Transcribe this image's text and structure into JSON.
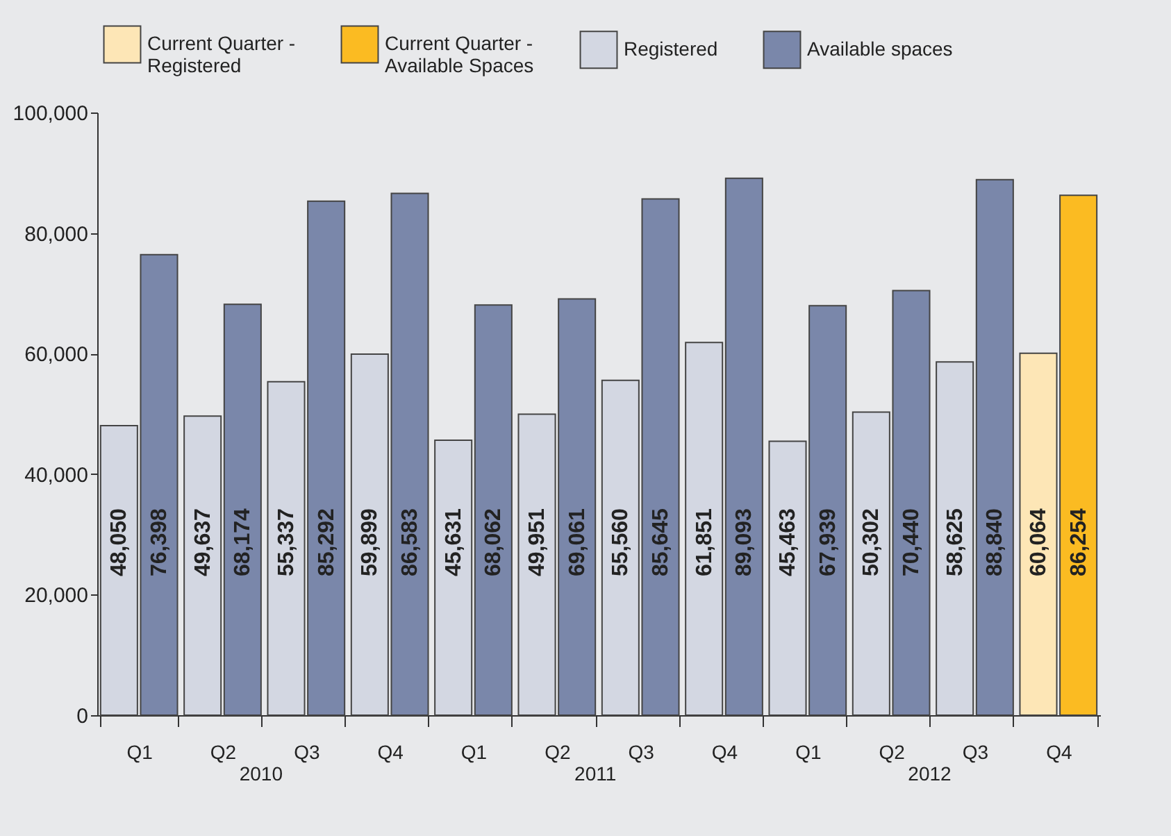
{
  "chart_data": {
    "type": "bar",
    "categories": [
      "Q1",
      "Q2",
      "Q3",
      "Q4",
      "Q1",
      "Q2",
      "Q3",
      "Q4",
      "Q1",
      "Q2",
      "Q3",
      "Q4"
    ],
    "annotations": [
      "2010",
      "2011",
      "2012"
    ],
    "ylim": [
      0,
      100000
    ],
    "yticks": [
      {
        "value": 0,
        "label": "0"
      },
      {
        "value": 20000,
        "label": "20,000"
      },
      {
        "value": 40000,
        "label": "40,000"
      },
      {
        "value": 60000,
        "label": "60,000"
      },
      {
        "value": 80000,
        "label": "80,000"
      },
      {
        "value": 100000,
        "label": "100,000"
      }
    ],
    "grid": false,
    "legend": "top",
    "series": [
      {
        "name": "Current Quarter - Registered",
        "color": "#fde6b6",
        "values": [
          null,
          null,
          null,
          null,
          null,
          null,
          null,
          null,
          null,
          null,
          null,
          60064
        ],
        "value_labels": [
          null,
          null,
          null,
          null,
          null,
          null,
          null,
          null,
          null,
          null,
          null,
          "60,064"
        ]
      },
      {
        "name": "Current Quarter - Available Spaces",
        "color": "#fbbb22",
        "values": [
          null,
          null,
          null,
          null,
          null,
          null,
          null,
          null,
          null,
          null,
          null,
          86254
        ],
        "value_labels": [
          null,
          null,
          null,
          null,
          null,
          null,
          null,
          null,
          null,
          null,
          null,
          "86,254"
        ]
      },
      {
        "name": "Registered",
        "color": "#d3d7e2",
        "values": [
          48050,
          49637,
          55337,
          59899,
          45631,
          49951,
          55560,
          61851,
          45463,
          50302,
          58625,
          null
        ],
        "value_labels": [
          "48,050",
          "49,637",
          "55,337",
          "59,899",
          "45,631",
          "49,951",
          "55,560",
          "61,851",
          "45,463",
          "50,302",
          "58,625",
          null
        ]
      },
      {
        "name": "Available spaces",
        "color": "#7a87aa",
        "values": [
          76398,
          68174,
          85292,
          86583,
          68062,
          69061,
          85645,
          89093,
          67939,
          70440,
          88840,
          null
        ],
        "value_labels": [
          "76,398",
          "68,174",
          "85,292",
          "86,583",
          "68,062",
          "69,061",
          "85,645",
          "89,093",
          "67,939",
          "70,440",
          "88,840",
          null
        ]
      }
    ]
  }
}
